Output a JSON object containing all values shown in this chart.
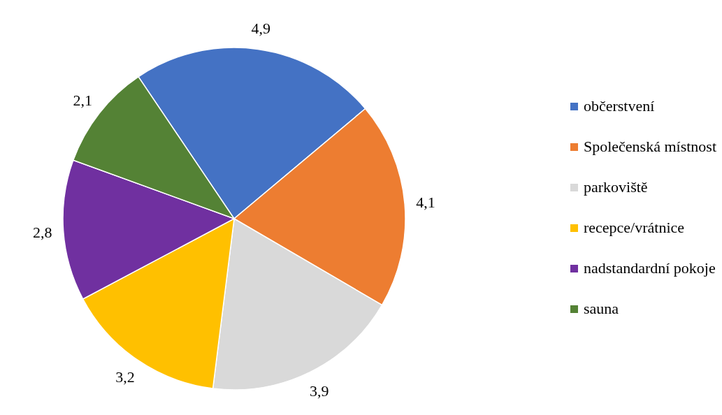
{
  "chart_data": {
    "type": "pie",
    "categories": [
      "občerstvení",
      "Společenská místnost",
      "parkoviště",
      "recepce/vrátnice",
      "nadstandardní pokoje",
      "sauna"
    ],
    "values": [
      4.9,
      4.1,
      3.9,
      3.2,
      2.8,
      2.1
    ],
    "colors": [
      "#4472c4",
      "#ed7d31",
      "#d9d9d9",
      "#ffc000",
      "#7030a0",
      "#548235"
    ],
    "value_labels": [
      "4,9",
      "4,1",
      "3,9",
      "3,2",
      "2,8",
      "2,1"
    ],
    "legend": "right"
  }
}
